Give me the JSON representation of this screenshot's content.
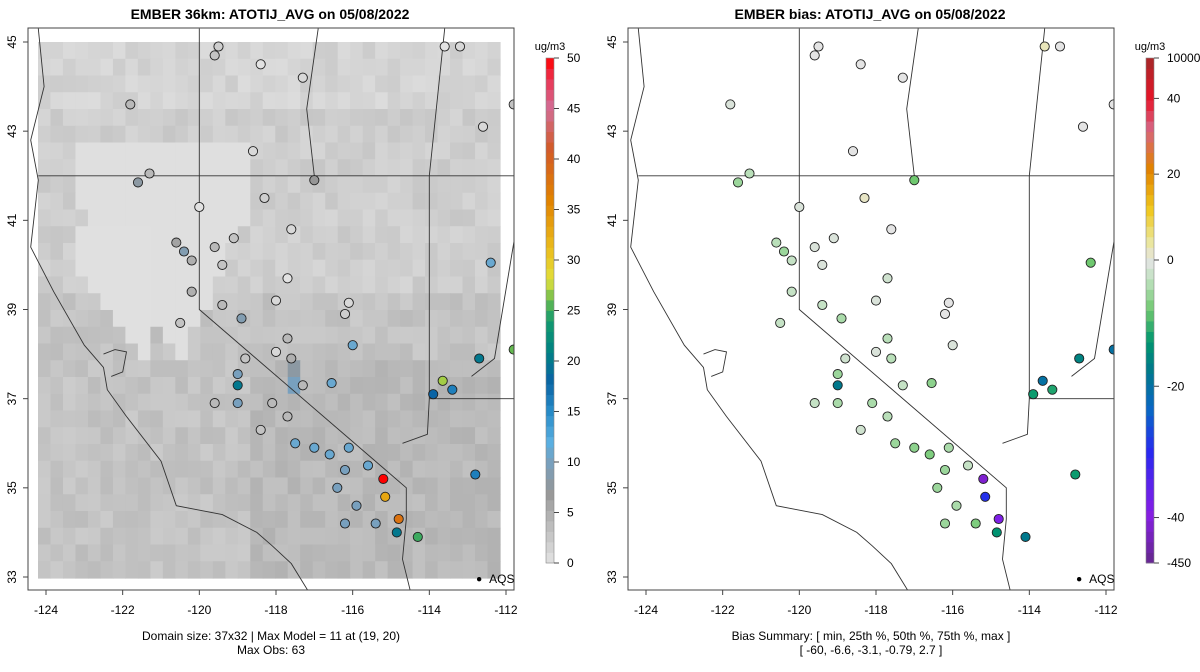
{
  "left_panel": {
    "title": "EMBER 36km: ATOTIJ_AVG on 05/08/2022",
    "footer_line1": "Domain size: 37x32 | Max Model = 11 at (19, 20)",
    "footer_line2": "Max Obs: 63",
    "colorbar": {
      "unit": "ug/m3",
      "ticks": [
        "0",
        "5",
        "10",
        "15",
        "20",
        "25",
        "30",
        "35",
        "40",
        "45",
        "50"
      ],
      "range": [
        0,
        50
      ]
    }
  },
  "right_panel": {
    "title": "EMBER bias: ATOTIJ_AVG on 05/08/2022",
    "footer_line1": "Bias Summary: [ min, 25th %, 50th %, 75th %, max ]",
    "footer_line2": "[ -60,   -6.6,   -3.1,   -0.79,   2.7 ]",
    "colorbar": {
      "unit": "ug/m3",
      "ticks": [
        "-450",
        "-40",
        "-20",
        "0",
        "20",
        "40",
        "10000"
      ]
    }
  },
  "axes": {
    "x_ticks": [
      "-124",
      "-122",
      "-120",
      "-118",
      "-116",
      "-114",
      "-112"
    ],
    "y_ticks": [
      "33",
      "35",
      "37",
      "39",
      "41",
      "43",
      "45"
    ],
    "lon_range": [
      -124.3,
      -111.7
    ],
    "lat_range": [
      32.6,
      45.3
    ]
  },
  "annotation": {
    "label": "AQS",
    "lon": -112.7,
    "lat": 32.95
  },
  "chart_data": [
    {
      "type": "heatmap",
      "title": "EMBER 36km: ATOTIJ_AVG on 05/08/2022",
      "xlabel": "",
      "ylabel": "",
      "x_ticks": [
        -124,
        -122,
        -120,
        -118,
        -116,
        -114,
        -112
      ],
      "y_ticks": [
        33,
        35,
        37,
        39,
        41,
        43,
        45
      ],
      "colorbar_range": [
        0,
        50
      ],
      "colorbar_label": "ug/m3",
      "grid_dims": "37x32",
      "max_model": 11,
      "max_obs": 63,
      "stations": [
        {
          "lon": -121.8,
          "lat": 43.6,
          "v": 4
        },
        {
          "lon": -121.3,
          "lat": 42.05,
          "v": 4
        },
        {
          "lon": -121.6,
          "lat": 41.85,
          "v": 8
        },
        {
          "lon": -120.6,
          "lat": 40.5,
          "v": 6
        },
        {
          "lon": -120.4,
          "lat": 40.3,
          "v": 9
        },
        {
          "lon": -120.2,
          "lat": 40.1,
          "v": 5
        },
        {
          "lon": -120.2,
          "lat": 39.4,
          "v": 5
        },
        {
          "lon": -119.4,
          "lat": 39.1,
          "v": 4
        },
        {
          "lon": -118.9,
          "lat": 38.8,
          "v": 9
        },
        {
          "lon": -117.7,
          "lat": 38.35,
          "v": 4
        },
        {
          "lon": -117.6,
          "lat": 37.9,
          "v": 5
        },
        {
          "lon": -117.3,
          "lat": 37.3,
          "v": 4
        },
        {
          "lon": -118.1,
          "lat": 36.9,
          "v": 4
        },
        {
          "lon": -117.7,
          "lat": 36.6,
          "v": 4
        },
        {
          "lon": -117.5,
          "lat": 36.0,
          "v": 11
        },
        {
          "lon": -117.0,
          "lat": 35.9,
          "v": 11
        },
        {
          "lon": -116.6,
          "lat": 35.75,
          "v": 11
        },
        {
          "lon": -116.1,
          "lat": 35.9,
          "v": 11
        },
        {
          "lon": -116.2,
          "lat": 35.4,
          "v": 10
        },
        {
          "lon": -115.6,
          "lat": 35.5,
          "v": 11
        },
        {
          "lon": -116.4,
          "lat": 35.0,
          "v": 10
        },
        {
          "lon": -115.9,
          "lat": 34.6,
          "v": 10
        },
        {
          "lon": -116.2,
          "lat": 34.2,
          "v": 10
        },
        {
          "lon": -115.4,
          "lat": 34.2,
          "v": 10
        },
        {
          "lon": -115.2,
          "lat": 35.2,
          "v": 50
        },
        {
          "lon": -115.15,
          "lat": 34.8,
          "v": 33
        },
        {
          "lon": -114.8,
          "lat": 34.3,
          "v": 38
        },
        {
          "lon": -114.85,
          "lat": 34.0,
          "v": 20
        },
        {
          "lon": -114.3,
          "lat": 33.9,
          "v": 25
        },
        {
          "lon": -113.65,
          "lat": 37.4,
          "v": 27
        },
        {
          "lon": -113.4,
          "lat": 37.2,
          "v": 16
        },
        {
          "lon": -113.9,
          "lat": 37.1,
          "v": 18
        },
        {
          "lon": -112.7,
          "lat": 37.9,
          "v": 20
        },
        {
          "lon": -112.8,
          "lat": 35.3,
          "v": 16
        },
        {
          "lon": -112.4,
          "lat": 40.05,
          "v": 11
        },
        {
          "lon": -111.8,
          "lat": 38.1,
          "v": 26
        },
        {
          "lon": -119.0,
          "lat": 37.3,
          "v": 20
        },
        {
          "lon": -119.0,
          "lat": 37.55,
          "v": 10
        },
        {
          "lon": -119.0,
          "lat": 36.9,
          "v": 10
        },
        {
          "lon": -116.55,
          "lat": 37.35,
          "v": 11
        },
        {
          "lon": -116.0,
          "lat": 38.2,
          "v": 11
        },
        {
          "lon": -117.0,
          "lat": 41.9,
          "v": 7
        },
        {
          "lon": -119.1,
          "lat": 40.6,
          "v": 3
        },
        {
          "lon": -119.6,
          "lat": 40.4,
          "v": 4
        },
        {
          "lon": -119.4,
          "lat": 40.0,
          "v": 3
        },
        {
          "lon": -118.3,
          "lat": 41.5,
          "v": 2
        },
        {
          "lon": -117.6,
          "lat": 40.8,
          "v": 1
        },
        {
          "lon": -116.1,
          "lat": 39.15,
          "v": 1
        },
        {
          "lon": -116.2,
          "lat": 38.9,
          "v": 2
        },
        {
          "lon": -118.6,
          "lat": 42.55,
          "v": 1
        },
        {
          "lon": -119.6,
          "lat": 44.7,
          "v": 3
        },
        {
          "lon": -119.5,
          "lat": 44.9,
          "v": 2
        },
        {
          "lon": -118.4,
          "lat": 44.5,
          "v": 0
        },
        {
          "lon": -117.3,
          "lat": 44.2,
          "v": 1
        },
        {
          "lon": -113.6,
          "lat": 44.9,
          "v": 0
        },
        {
          "lon": -113.2,
          "lat": 44.9,
          "v": 1
        },
        {
          "lon": -112.6,
          "lat": 43.1,
          "v": 1
        },
        {
          "lon": -111.8,
          "lat": 43.6,
          "v": 3
        },
        {
          "lon": -120.0,
          "lat": 41.3,
          "v": 0
        },
        {
          "lon": -120.5,
          "lat": 38.7,
          "v": 3
        },
        {
          "lon": -118.0,
          "lat": 39.2,
          "v": 1
        },
        {
          "lon": -117.7,
          "lat": 39.7,
          "v": 0
        },
        {
          "lon": -118.8,
          "lat": 37.9,
          "v": 3
        },
        {
          "lon": -118.0,
          "lat": 38.05,
          "v": 1
        },
        {
          "lon": -119.6,
          "lat": 36.9,
          "v": 4
        },
        {
          "lon": -118.4,
          "lat": 36.3,
          "v": 3
        }
      ]
    },
    {
      "type": "scatter",
      "title": "EMBER bias: ATOTIJ_AVG on 05/08/2022",
      "x_ticks": [
        -124,
        -122,
        -120,
        -118,
        -116,
        -114,
        -112
      ],
      "y_ticks": [
        33,
        35,
        37,
        39,
        41,
        43,
        45
      ],
      "colorbar_ticks": [
        -450,
        -40,
        -20,
        0,
        20,
        40,
        10000
      ],
      "colorbar_label": "ug/m3",
      "bias_summary": {
        "min": -60,
        "p25": -6.6,
        "p50": -3.1,
        "p75": -0.79,
        "max": 2.7
      },
      "stations": [
        {
          "lon": -121.8,
          "lat": 43.6,
          "v": -1
        },
        {
          "lon": -121.3,
          "lat": 42.05,
          "v": -4
        },
        {
          "lon": -121.6,
          "lat": 41.85,
          "v": -6
        },
        {
          "lon": -120.6,
          "lat": 40.5,
          "v": -4
        },
        {
          "lon": -120.4,
          "lat": 40.3,
          "v": -6
        },
        {
          "lon": -120.2,
          "lat": 40.1,
          "v": -3
        },
        {
          "lon": -120.2,
          "lat": 39.4,
          "v": -3
        },
        {
          "lon": -119.4,
          "lat": 39.1,
          "v": -3
        },
        {
          "lon": -118.9,
          "lat": 38.8,
          "v": -5
        },
        {
          "lon": -117.7,
          "lat": 38.35,
          "v": -4
        },
        {
          "lon": -117.6,
          "lat": 37.9,
          "v": -4
        },
        {
          "lon": -117.3,
          "lat": 37.3,
          "v": -3
        },
        {
          "lon": -118.1,
          "lat": 36.9,
          "v": -5
        },
        {
          "lon": -117.7,
          "lat": 36.6,
          "v": -4
        },
        {
          "lon": -117.5,
          "lat": 36.0,
          "v": -6
        },
        {
          "lon": -117.0,
          "lat": 35.9,
          "v": -7
        },
        {
          "lon": -116.6,
          "lat": 35.75,
          "v": -8
        },
        {
          "lon": -116.1,
          "lat": 35.9,
          "v": -5
        },
        {
          "lon": -116.2,
          "lat": 35.4,
          "v": -6
        },
        {
          "lon": -115.6,
          "lat": 35.5,
          "v": -3
        },
        {
          "lon": -116.4,
          "lat": 35.0,
          "v": -6
        },
        {
          "lon": -115.9,
          "lat": 34.6,
          "v": -5
        },
        {
          "lon": -116.2,
          "lat": 34.2,
          "v": -6
        },
        {
          "lon": -115.4,
          "lat": 34.2,
          "v": -8
        },
        {
          "lon": -115.2,
          "lat": 35.2,
          "v": -60
        },
        {
          "lon": -115.15,
          "lat": 34.8,
          "v": -30
        },
        {
          "lon": -114.8,
          "lat": 34.3,
          "v": -38
        },
        {
          "lon": -114.85,
          "lat": 34.0,
          "v": -15
        },
        {
          "lon": -114.1,
          "lat": 33.9,
          "v": -20
        },
        {
          "lon": -113.65,
          "lat": 37.4,
          "v": -22
        },
        {
          "lon": -113.4,
          "lat": 37.2,
          "v": -13
        },
        {
          "lon": -113.9,
          "lat": 37.1,
          "v": -14
        },
        {
          "lon": -112.7,
          "lat": 37.9,
          "v": -18
        },
        {
          "lon": -112.8,
          "lat": 35.3,
          "v": -14
        },
        {
          "lon": -112.4,
          "lat": 40.05,
          "v": -9
        },
        {
          "lon": -111.8,
          "lat": 38.1,
          "v": -22
        },
        {
          "lon": -119.0,
          "lat": 37.3,
          "v": -20
        },
        {
          "lon": -119.0,
          "lat": 37.55,
          "v": -6
        },
        {
          "lon": -119.0,
          "lat": 36.9,
          "v": -5
        },
        {
          "lon": -116.55,
          "lat": 37.35,
          "v": -7
        },
        {
          "lon": -116.0,
          "lat": 38.2,
          "v": -1
        },
        {
          "lon": -117.0,
          "lat": 41.9,
          "v": -9
        },
        {
          "lon": -119.1,
          "lat": 40.6,
          "v": -1
        },
        {
          "lon": -119.6,
          "lat": 40.4,
          "v": -1
        },
        {
          "lon": -119.4,
          "lat": 40.0,
          "v": -1
        },
        {
          "lon": -118.3,
          "lat": 41.5,
          "v": 2
        },
        {
          "lon": -117.6,
          "lat": 40.8,
          "v": 0
        },
        {
          "lon": -116.1,
          "lat": 39.15,
          "v": 0
        },
        {
          "lon": -116.2,
          "lat": 38.9,
          "v": 0
        },
        {
          "lon": -118.6,
          "lat": 42.55,
          "v": 0
        },
        {
          "lon": -119.6,
          "lat": 44.7,
          "v": 0
        },
        {
          "lon": -119.5,
          "lat": 44.9,
          "v": 0
        },
        {
          "lon": -118.4,
          "lat": 44.5,
          "v": 0
        },
        {
          "lon": -117.3,
          "lat": 44.2,
          "v": 0
        },
        {
          "lon": -113.6,
          "lat": 44.9,
          "v": 2.7
        },
        {
          "lon": -113.2,
          "lat": 44.9,
          "v": 0
        },
        {
          "lon": -112.6,
          "lat": 43.1,
          "v": 0
        },
        {
          "lon": -111.8,
          "lat": 43.6,
          "v": 0
        },
        {
          "lon": -120.0,
          "lat": 41.3,
          "v": -1
        },
        {
          "lon": -120.5,
          "lat": 38.7,
          "v": -3
        },
        {
          "lon": -118.0,
          "lat": 39.2,
          "v": -1
        },
        {
          "lon": -117.7,
          "lat": 39.7,
          "v": -2
        },
        {
          "lon": -118.8,
          "lat": 37.9,
          "v": -2
        },
        {
          "lon": -118.0,
          "lat": 38.05,
          "v": -1
        },
        {
          "lon": -119.6,
          "lat": 36.9,
          "v": -3
        },
        {
          "lon": -118.4,
          "lat": 36.3,
          "v": -2
        }
      ]
    }
  ]
}
